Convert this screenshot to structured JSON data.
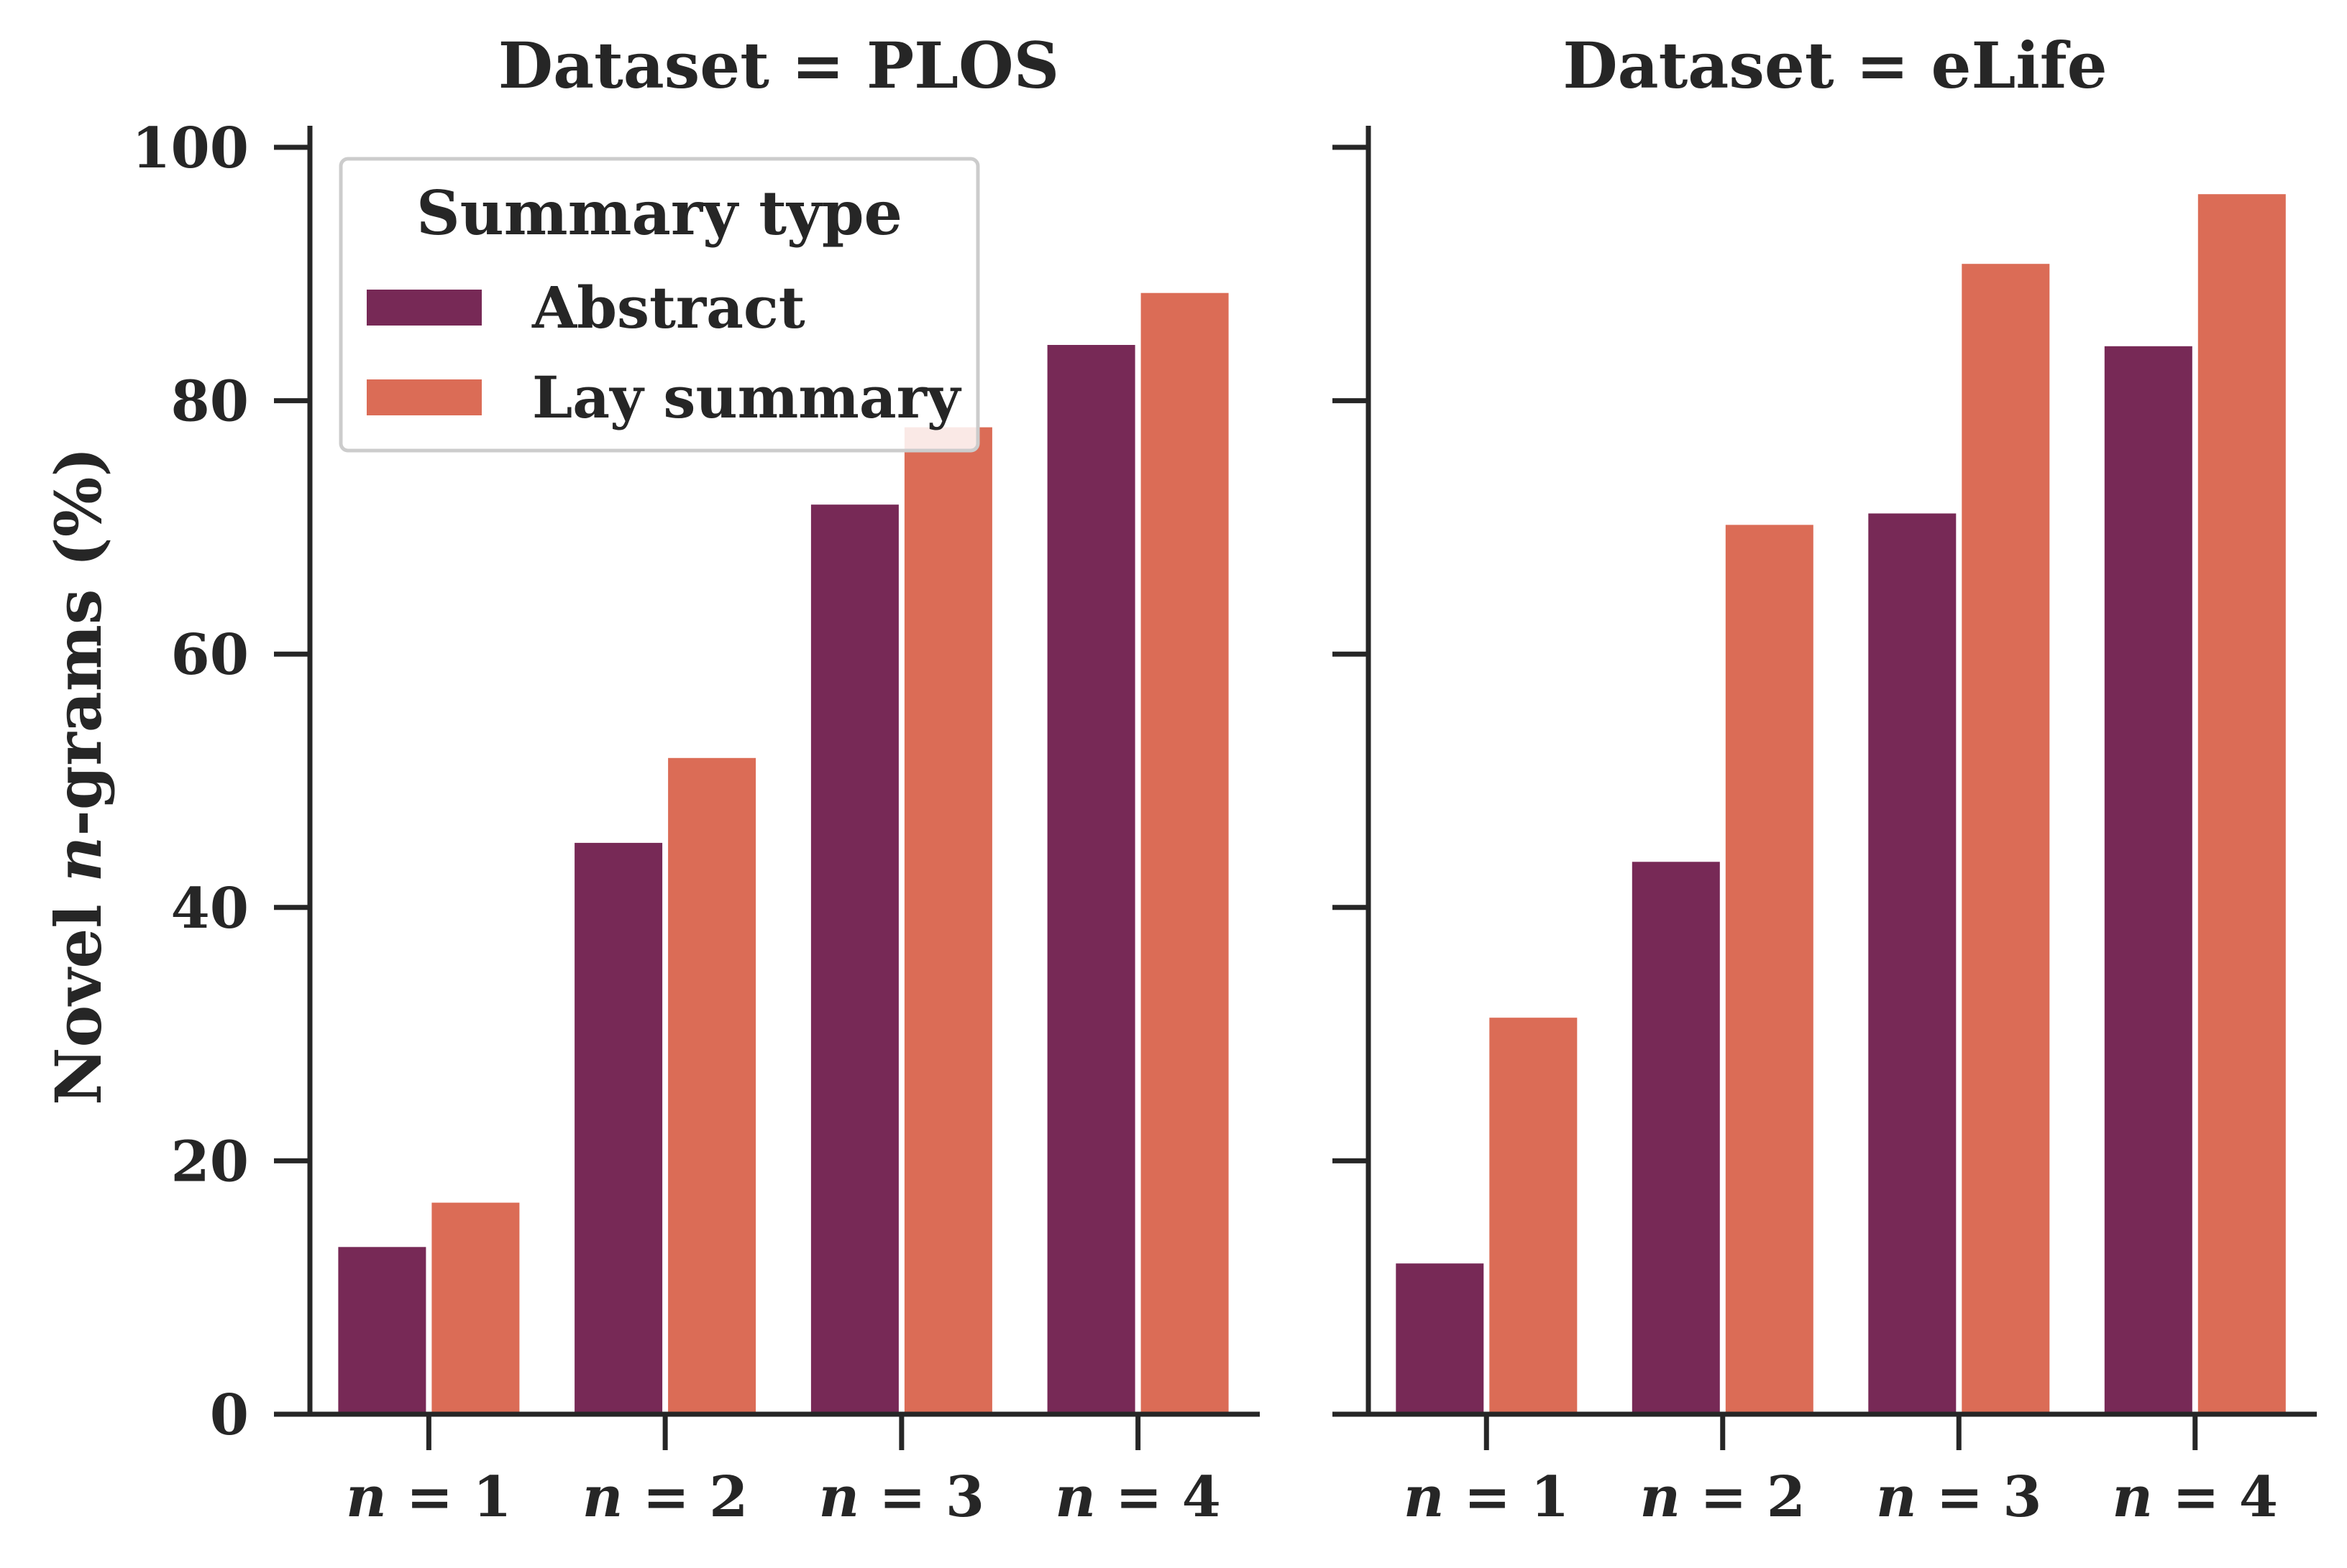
{
  "chart_data": [
    {
      "type": "bar",
      "title": "Dataset = PLOS",
      "categories": [
        "n = 1",
        "n = 2",
        "n = 3",
        "n = 4"
      ],
      "series": [
        {
          "name": "Abstract",
          "values": [
            13.2,
            45.1,
            71.8,
            84.4
          ]
        },
        {
          "name": "Lay summary",
          "values": [
            16.7,
            51.8,
            77.9,
            88.5
          ]
        }
      ],
      "ylabel": "Novel n-grams (%)",
      "ylim": [
        0,
        100
      ],
      "yticks": [
        0,
        20,
        40,
        60,
        80,
        100
      ]
    },
    {
      "type": "bar",
      "title": "Dataset = eLife",
      "categories": [
        "n = 1",
        "n = 2",
        "n = 3",
        "n = 4"
      ],
      "series": [
        {
          "name": "Abstract",
          "values": [
            11.9,
            43.6,
            71.1,
            84.3
          ]
        },
        {
          "name": "Lay summary",
          "values": [
            31.3,
            70.2,
            90.8,
            96.3
          ]
        }
      ],
      "ylim": [
        0,
        100
      ]
    }
  ],
  "legend": {
    "title": "Summary type",
    "items": [
      "Abstract",
      "Lay summary"
    ],
    "placement": "top-left"
  },
  "colors": {
    "Abstract": "#772956",
    "Lay summary": "#DB6C56",
    "axis": "#262626"
  }
}
